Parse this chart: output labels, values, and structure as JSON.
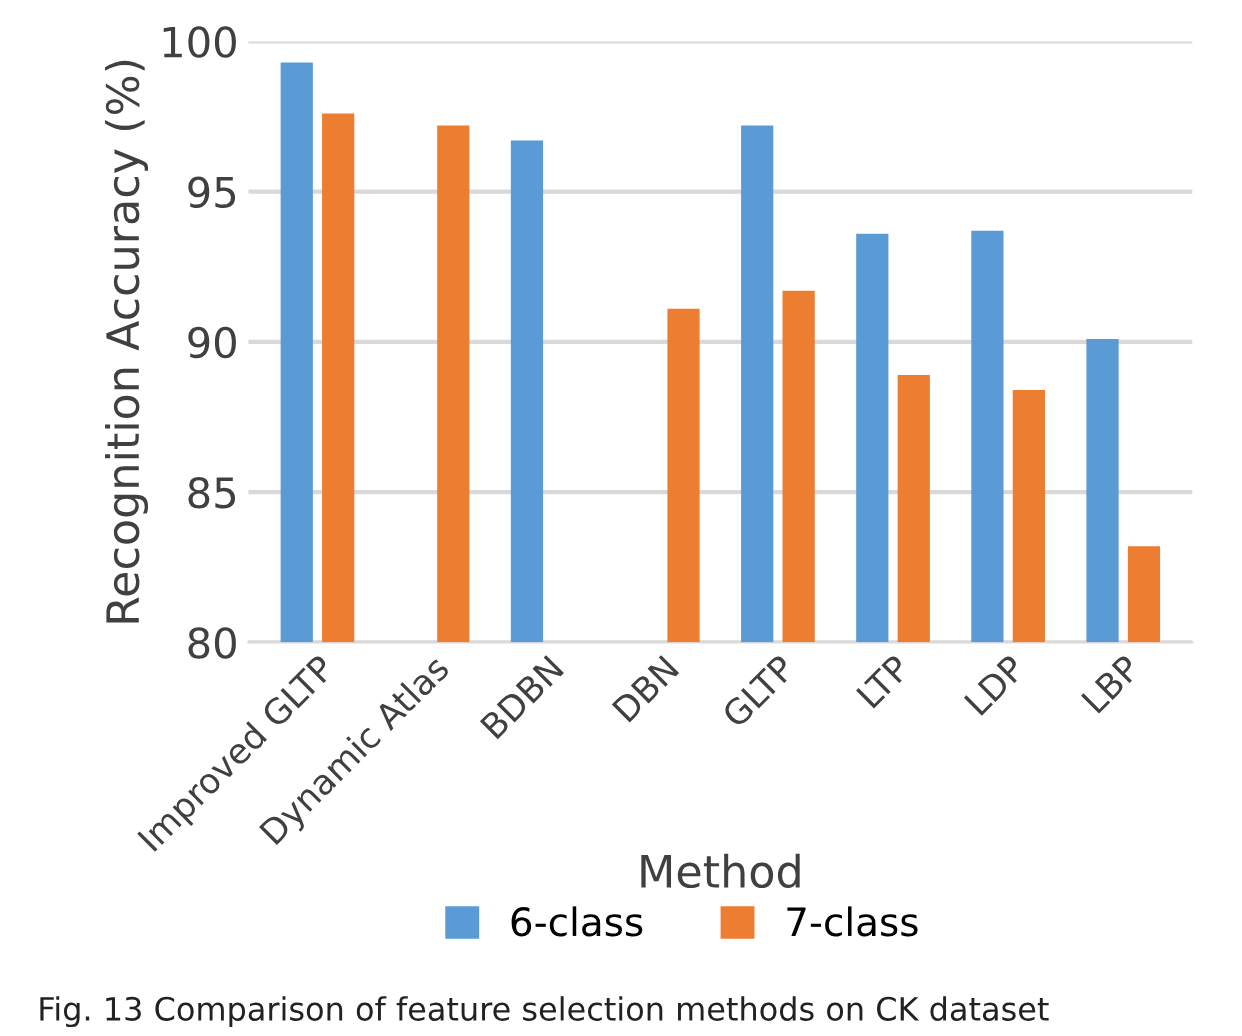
{
  "chart_data": {
    "type": "bar",
    "xlabel": "Method",
    "ylabel": "Recognition Accuracy (%)",
    "categories": [
      "Improved GLTP",
      "Dynamic Atlas",
      "BDBN",
      "DBN",
      "GLTP",
      "LTP",
      "LDP",
      "LBP"
    ],
    "series": [
      {
        "name": "6-class",
        "color": "#5b9bd5",
        "values": [
          99.3,
          null,
          96.7,
          null,
          97.2,
          93.6,
          93.7,
          90.1
        ]
      },
      {
        "name": "7-class",
        "color": "#ed7d31",
        "values": [
          97.6,
          97.2,
          null,
          91.1,
          91.7,
          88.9,
          88.4,
          83.2
        ]
      }
    ],
    "ylim": [
      80,
      100
    ],
    "yticks": [
      80,
      85,
      90,
      95,
      100
    ],
    "grid": "y",
    "legend": "bottom",
    "annotations": [
      "Fig. 13 Comparison of feature selection methods on CK dataset"
    ]
  }
}
